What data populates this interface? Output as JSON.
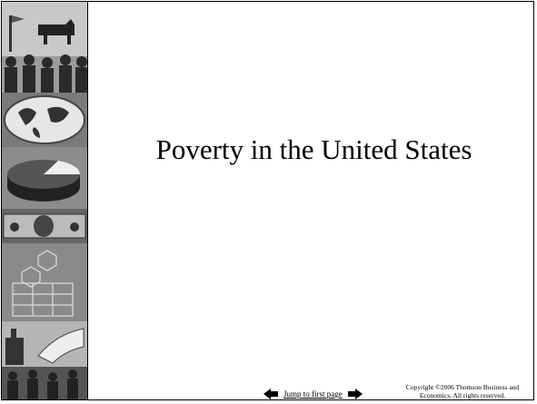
{
  "title": "Poverty in the United States",
  "navigation": {
    "link": "Jump to first page"
  },
  "footer": {
    "copyright": "Copyright ©2006  Thomson Business and Economics. All rights reserved."
  }
}
